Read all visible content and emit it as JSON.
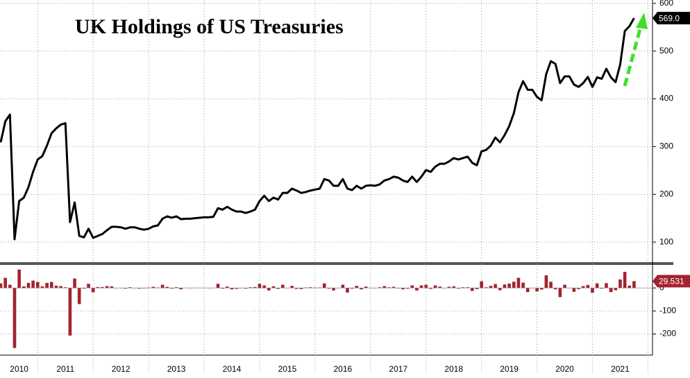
{
  "chart_data": [
    {
      "type": "line",
      "title": "UK Holdings of US Treasuries",
      "color": "#000000",
      "categories": [
        null,
        null,
        null,
        null,
        "2010",
        null,
        null,
        null,
        null,
        null,
        null,
        null,
        null,
        null,
        "2011",
        null,
        null,
        null,
        null,
        null,
        null,
        null,
        null,
        null,
        null,
        null,
        "2012",
        null,
        null,
        null,
        null,
        null,
        null,
        null,
        null,
        null,
        null,
        null,
        "2013",
        null,
        null,
        null,
        null,
        null,
        null,
        null,
        null,
        null,
        null,
        null,
        "2014",
        null,
        null,
        null,
        null,
        null,
        null,
        null,
        null,
        null,
        null,
        null,
        "2015",
        null,
        null,
        null,
        null,
        null,
        null,
        null,
        null,
        null,
        null,
        null,
        "2016",
        null,
        null,
        null,
        null,
        null,
        null,
        null,
        null,
        null,
        null,
        null,
        "2017",
        null,
        null,
        null,
        null,
        null,
        null,
        null,
        null,
        null,
        null,
        null,
        "2018",
        null,
        null,
        null,
        null,
        null,
        null,
        null,
        null,
        null,
        null,
        null,
        "2019",
        null,
        null,
        null,
        null,
        null,
        null,
        null,
        null,
        null,
        null,
        null,
        "2020",
        null,
        null,
        null,
        null,
        null,
        null,
        null,
        null,
        null,
        null,
        null,
        "2021",
        null,
        null,
        null
      ],
      "values": [
        309,
        353,
        367,
        106,
        186,
        193,
        215,
        247,
        273,
        280,
        302,
        328,
        338,
        346,
        349,
        142,
        183,
        113,
        110,
        128,
        109,
        113,
        117,
        125,
        132,
        132,
        131,
        128,
        131,
        131,
        128,
        126,
        128,
        133,
        135,
        149,
        154,
        151,
        154,
        148,
        149,
        149,
        150,
        151,
        152,
        152,
        153,
        171,
        168,
        174,
        168,
        164,
        164,
        161,
        164,
        168,
        186,
        197,
        186,
        193,
        189,
        203,
        203,
        212,
        208,
        203,
        205,
        208,
        210,
        212,
        232,
        229,
        218,
        218,
        232,
        212,
        209,
        218,
        212,
        218,
        219,
        218,
        221,
        229,
        232,
        237,
        235,
        229,
        226,
        237,
        226,
        237,
        251,
        247,
        258,
        264,
        264,
        269,
        276,
        273,
        276,
        279,
        266,
        261,
        290,
        293,
        302,
        319,
        309,
        324,
        343,
        370,
        414,
        437,
        419,
        419,
        404,
        397,
        452,
        479,
        473,
        433,
        447,
        447,
        430,
        425,
        433,
        446,
        425,
        445,
        442,
        463,
        445,
        435,
        472,
        542,
        552,
        569
      ],
      "value_labels": {
        "137": "569.0"
      },
      "ylim": [
        58,
        607
      ],
      "yticks": [
        100,
        200,
        300,
        400,
        500,
        600
      ],
      "grid": true
    },
    {
      "type": "bar",
      "color": "#a3232f",
      "values": [
        20,
        44,
        14,
        -261,
        80,
        7,
        22,
        32,
        26,
        7,
        22,
        26,
        10,
        8,
        3,
        -207,
        41,
        -70,
        -3,
        18,
        -19,
        4,
        4,
        8,
        7,
        0,
        -1,
        -3,
        3,
        0,
        -3,
        -2,
        2,
        5,
        2,
        14,
        5,
        -3,
        3,
        -6,
        1,
        0,
        1,
        1,
        1,
        0,
        1,
        18,
        -3,
        6,
        -6,
        -4,
        0,
        -3,
        3,
        4,
        18,
        11,
        -11,
        7,
        -4,
        14,
        0,
        9,
        -4,
        -5,
        2,
        3,
        2,
        2,
        20,
        -3,
        -11,
        0,
        14,
        -20,
        -3,
        9,
        -6,
        6,
        1,
        -1,
        3,
        8,
        3,
        5,
        -2,
        -6,
        -3,
        11,
        -11,
        11,
        14,
        -4,
        11,
        6,
        0,
        5,
        7,
        -3,
        3,
        3,
        -13,
        -5,
        29,
        3,
        9,
        17,
        -10,
        15,
        19,
        27,
        44,
        23,
        -18,
        0,
        -15,
        -7,
        55,
        27,
        -6,
        -40,
        14,
        0,
        -17,
        -5,
        8,
        13,
        -21,
        20,
        -3,
        21,
        -18,
        -10,
        37,
        70,
        10,
        29.531
      ],
      "ylim": [
        -292,
        100
      ],
      "yticks": [
        0,
        -100,
        -200
      ],
      "grid": true
    }
  ]
}
